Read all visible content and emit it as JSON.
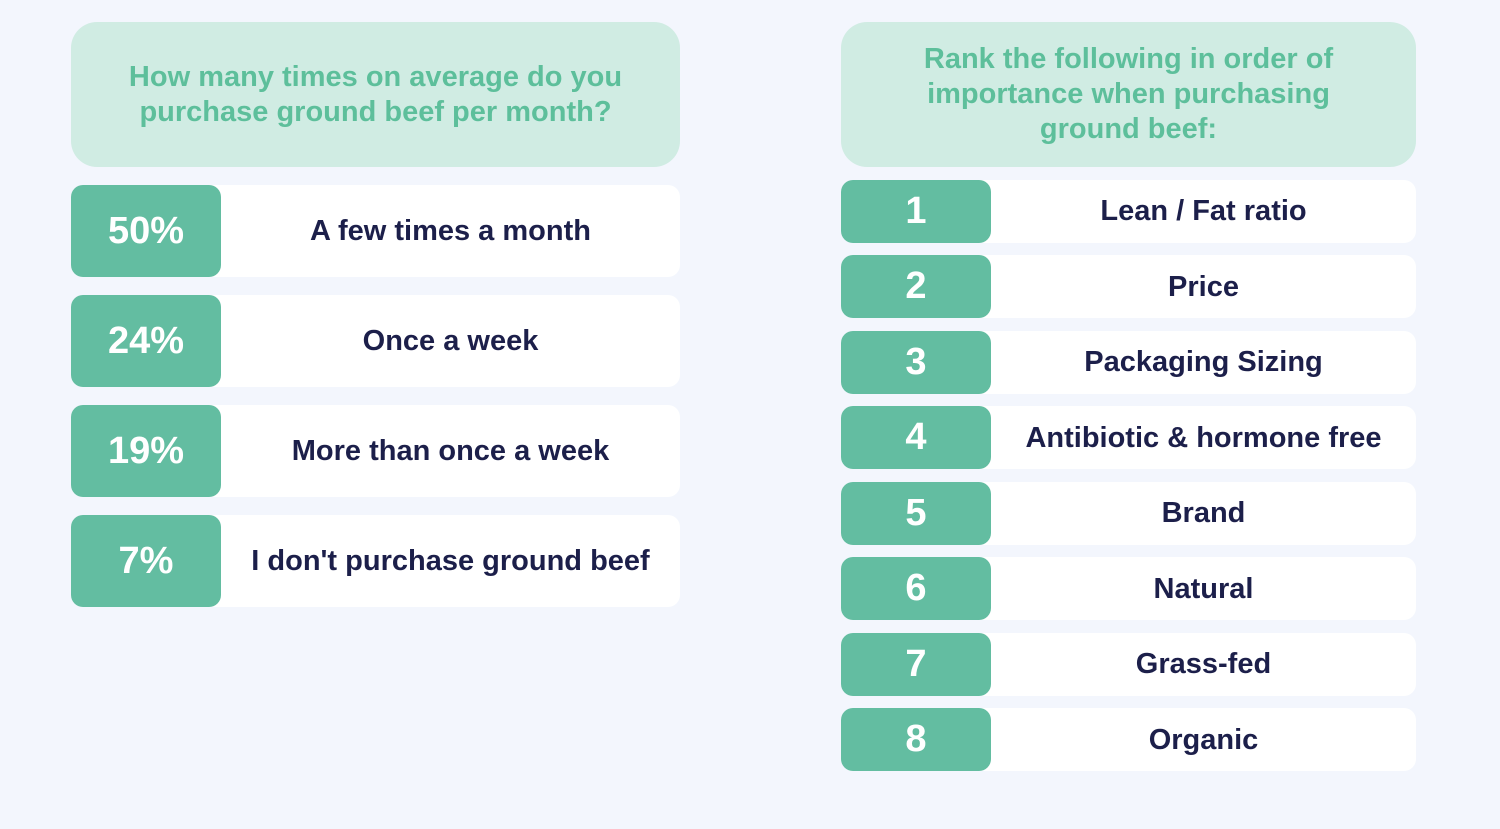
{
  "frequency": {
    "question": "How many times on average do you purchase ground beef per month?",
    "answers": [
      {
        "percent": "50%",
        "label": "A few times a month"
      },
      {
        "percent": "24%",
        "label": "Once a week"
      },
      {
        "percent": "19%",
        "label": "More than once a week"
      },
      {
        "percent": "7%",
        "label": "I don't purchase ground beef"
      }
    ]
  },
  "ranking": {
    "question": "Rank the following in order of importance when purchasing ground beef:",
    "items": [
      {
        "rank": "1",
        "label": "Lean / Fat ratio"
      },
      {
        "rank": "2",
        "label": "Price"
      },
      {
        "rank": "3",
        "label": "Packaging Sizing"
      },
      {
        "rank": "4",
        "label": "Antibiotic & hormone free"
      },
      {
        "rank": "5",
        "label": "Brand"
      },
      {
        "rank": "6",
        "label": "Natural"
      },
      {
        "rank": "7",
        "label": "Grass-fed"
      },
      {
        "rank": "8",
        "label": "Organic"
      }
    ]
  }
}
